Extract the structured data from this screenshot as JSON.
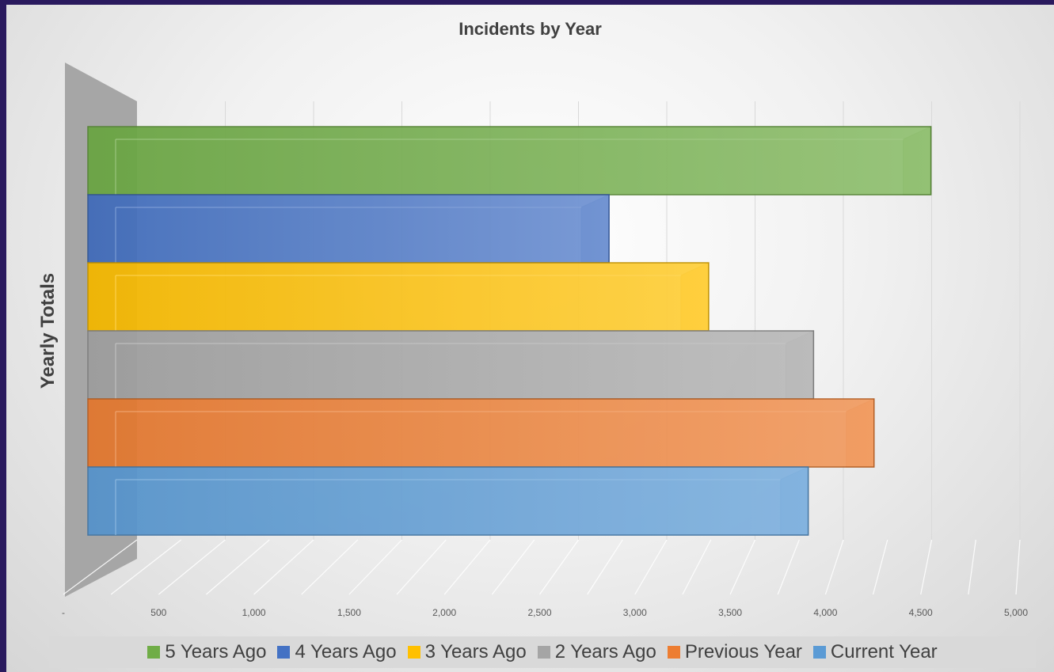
{
  "chart_data": {
    "type": "bar",
    "orientation": "horizontal",
    "style": "3d",
    "title": "Incidents by Year",
    "ylabel": "Yearly Totals",
    "xlabel": "",
    "xlim": [
      0,
      5000
    ],
    "x_ticks": [
      "-",
      "500",
      "1,000",
      "1,500",
      "2,000",
      "2,500",
      "3,000",
      "3,500",
      "4,000",
      "4,500",
      "5,000"
    ],
    "grid": true,
    "legend_position": "bottom",
    "series": [
      {
        "name": "5 Years Ago",
        "value": 4740,
        "color": "#70ad47"
      },
      {
        "name": "4 Years Ago",
        "value": 2930,
        "color": "#4472c4"
      },
      {
        "name": "3 Years Ago",
        "value": 3490,
        "color": "#ffc000"
      },
      {
        "name": "2 Years Ago",
        "value": 4080,
        "color": "#a5a5a5"
      },
      {
        "name": "Previous Year",
        "value": 4420,
        "color": "#ed7d31"
      },
      {
        "name": "Current Year",
        "value": 4050,
        "color": "#5b9bd5"
      }
    ]
  }
}
